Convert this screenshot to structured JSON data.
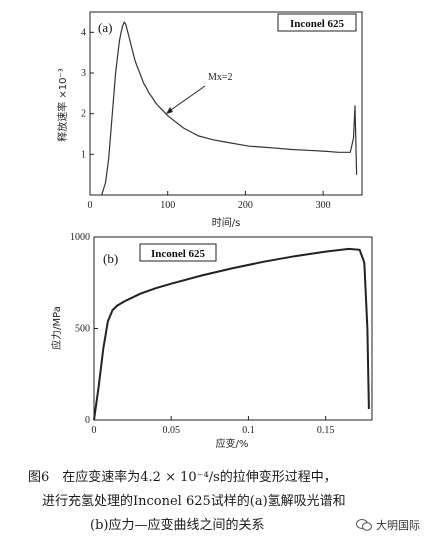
{
  "chart_data": [
    {
      "type": "line",
      "panel_label": "(a)",
      "legend": "Inconel 625",
      "ylabel": "释放速率 ×10⁻³",
      "xlabel": "时间/s",
      "xlim": [
        0,
        350
      ],
      "ylim": [
        0,
        4.5
      ],
      "xticks": [
        "0",
        "100",
        "200",
        "300"
      ],
      "yticks": [
        "1",
        "2",
        "3",
        "4"
      ],
      "annotation": "Mx=2",
      "series": [
        {
          "x": [
            15,
            20,
            24,
            27,
            30,
            33,
            36,
            38,
            40,
            42,
            44,
            46,
            48,
            50,
            52,
            54,
            56,
            58,
            60,
            63,
            66,
            69,
            72,
            76,
            80,
            85,
            90,
            95,
            100,
            110,
            120,
            130,
            140,
            150,
            160,
            175,
            190,
            205,
            220,
            240,
            260,
            280,
            300,
            320,
            335,
            339,
            341,
            343
          ],
          "y": [
            0.0,
            0.3,
            0.9,
            1.6,
            2.3,
            3.0,
            3.5,
            3.8,
            4.0,
            4.15,
            4.25,
            4.2,
            4.05,
            3.9,
            3.75,
            3.6,
            3.45,
            3.3,
            3.2,
            3.05,
            2.9,
            2.75,
            2.65,
            2.5,
            2.4,
            2.25,
            2.15,
            2.05,
            1.95,
            1.8,
            1.65,
            1.55,
            1.45,
            1.4,
            1.35,
            1.3,
            1.25,
            1.2,
            1.18,
            1.15,
            1.12,
            1.1,
            1.08,
            1.05,
            1.05,
            1.4,
            2.2,
            0.5
          ]
        }
      ]
    },
    {
      "type": "line",
      "panel_label": "(b)",
      "legend": "Inconel 625",
      "ylabel": "应力/MPa",
      "xlabel": "应变/%",
      "xlim": [
        0,
        0.18
      ],
      "ylim": [
        0,
        1000
      ],
      "xticks": [
        "0",
        "0.05",
        "0.1",
        "0.15"
      ],
      "yticks": [
        "0",
        "500",
        "1000"
      ],
      "series": [
        {
          "x": [
            0,
            0.003,
            0.006,
            0.009,
            0.012,
            0.015,
            0.02,
            0.03,
            0.04,
            0.05,
            0.07,
            0.09,
            0.11,
            0.13,
            0.15,
            0.165,
            0.172,
            0.175,
            0.177,
            0.178
          ],
          "y": [
            0,
            180,
            390,
            540,
            600,
            625,
            650,
            690,
            720,
            745,
            790,
            830,
            865,
            895,
            920,
            935,
            930,
            860,
            500,
            60
          ]
        }
      ]
    }
  ],
  "caption": {
    "line1": "图6　在应变速率为4.2 × 10⁻⁴/s的拉伸变形过程中，",
    "line2": "进行充氢处理的Inconel 625试样的(a)氢解吸光谱和",
    "line3": "(b)应力—应变曲线之间的关系"
  },
  "watermark": "大明国际"
}
